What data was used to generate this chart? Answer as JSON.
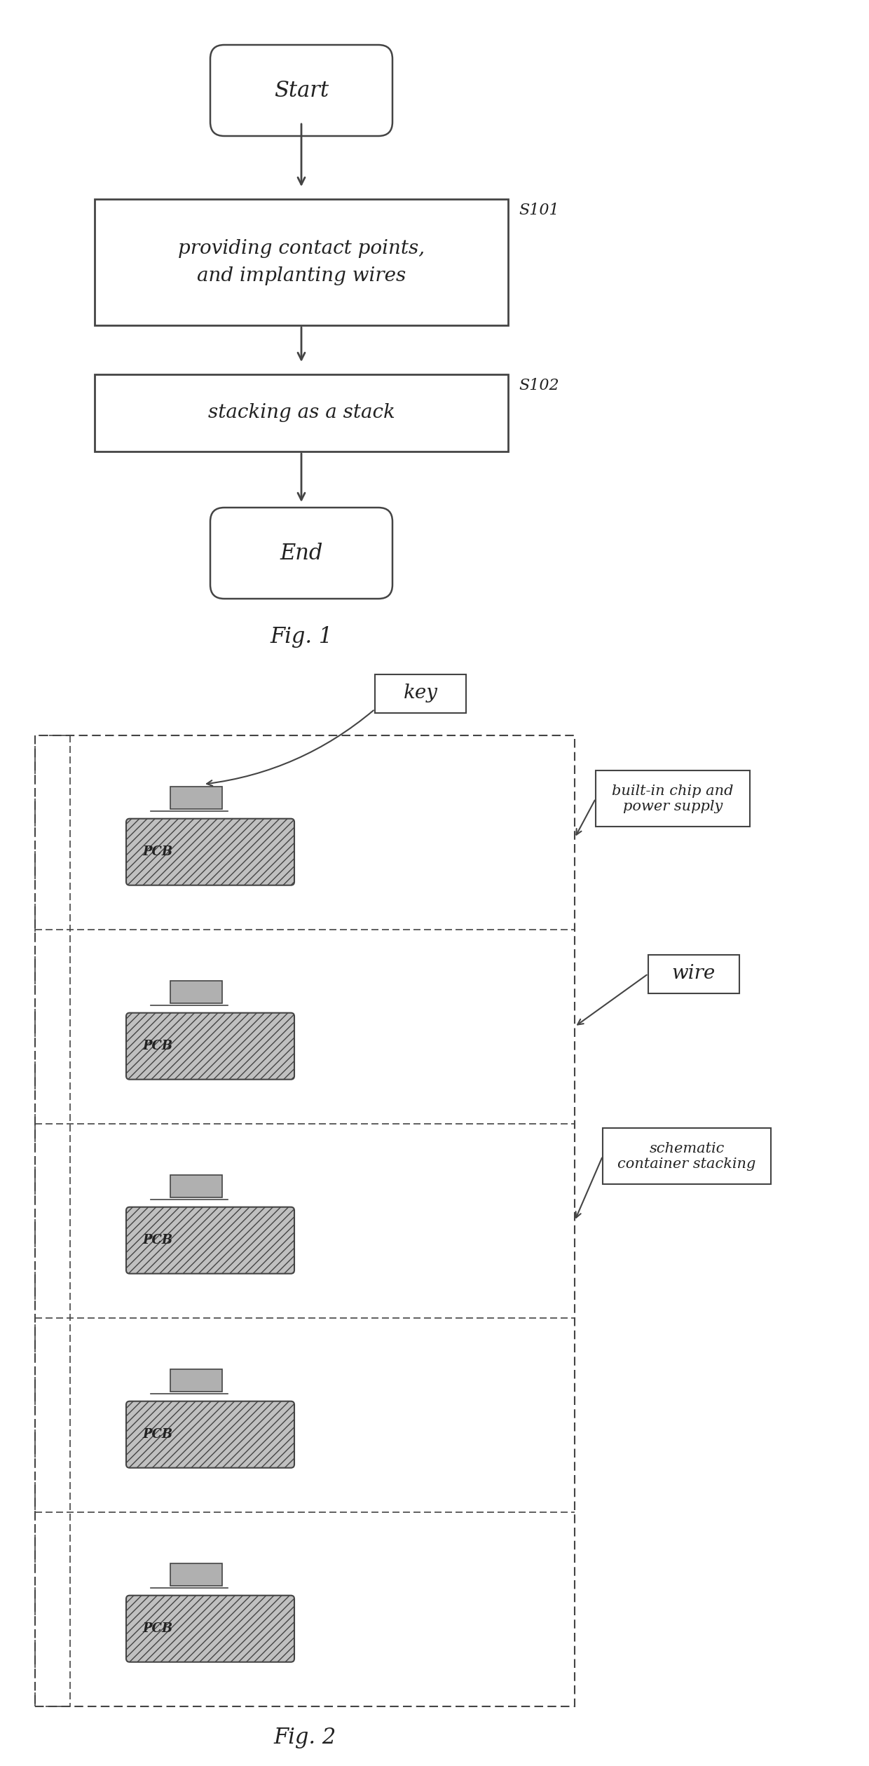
{
  "fig1": {
    "title": "Fig. 1",
    "start_text": "Start",
    "end_text": "End",
    "box1_text": "providing contact points,\nand implanting wires",
    "box2_text": "stacking as a stack",
    "label1": "S101",
    "label2": "S102"
  },
  "fig2": {
    "title": "Fig. 2",
    "label_key": "key",
    "label_built_in": "built-in chip and\npower supply",
    "label_wire": "wire",
    "label_schematic": "schematic\ncontainer stacking",
    "num_layers": 5,
    "pcb_text": "PCB"
  },
  "background_color": "#ffffff",
  "line_color": "#444444",
  "text_color": "#222222"
}
